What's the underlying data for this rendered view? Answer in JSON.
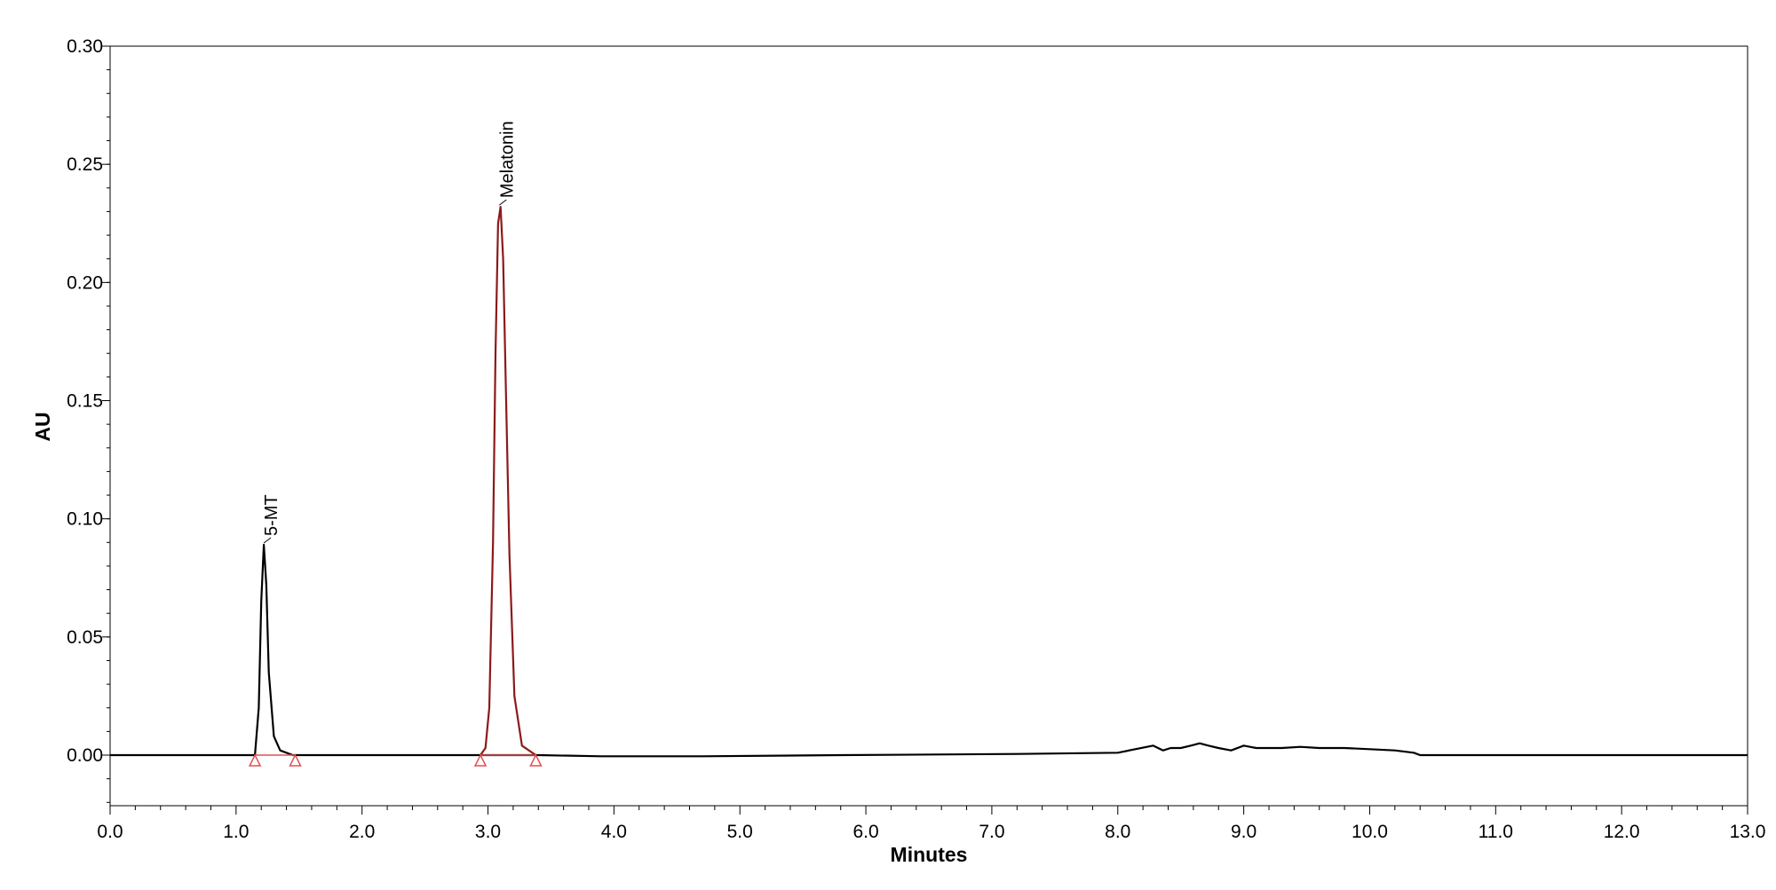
{
  "chart_data": {
    "type": "line",
    "title": "",
    "xlabel": "Minutes",
    "ylabel": "AU",
    "xlim": [
      0.0,
      13.0
    ],
    "ylim": [
      -0.022,
      0.3
    ],
    "grid": false,
    "x_ticks": [
      "0.0",
      "1.0",
      "2.0",
      "3.0",
      "4.0",
      "5.0",
      "6.0",
      "7.0",
      "8.0",
      "9.0",
      "10.0",
      "11.0",
      "12.0",
      "13.0"
    ],
    "x_tick_values": [
      0,
      1,
      2,
      3,
      4,
      5,
      6,
      7,
      8,
      9,
      10,
      11,
      12,
      13
    ],
    "y_ticks": [
      "0.00",
      "0.05",
      "0.10",
      "0.15",
      "0.20",
      "0.25",
      "0.30"
    ],
    "y_tick_values": [
      0.0,
      0.05,
      0.1,
      0.15,
      0.2,
      0.25,
      0.3
    ],
    "series": [
      {
        "color": "#000000",
        "x": [
          0.0,
          1.15,
          1.18,
          1.2,
          1.22,
          1.24,
          1.26,
          1.3,
          1.35,
          1.45,
          2.5,
          2.9,
          3.4,
          3.9,
          4.7,
          5.8,
          7.2,
          8.0,
          8.28,
          8.32,
          8.36,
          8.42,
          8.5,
          8.58,
          8.65,
          8.72,
          8.8,
          8.9,
          9.0,
          9.05,
          9.1,
          9.2,
          9.3,
          9.45,
          9.6,
          9.8,
          10.0,
          10.2,
          10.35,
          10.4,
          11.0,
          13.0
        ],
        "y": [
          0.0,
          0.0,
          0.02,
          0.065,
          0.089,
          0.072,
          0.035,
          0.008,
          0.002,
          0.0,
          0.0,
          0.0,
          0.0,
          -0.0005,
          -0.0005,
          0.0,
          0.0005,
          0.001,
          0.004,
          0.003,
          0.002,
          0.003,
          0.003,
          0.004,
          0.005,
          0.004,
          0.003,
          0.002,
          0.004,
          0.0035,
          0.003,
          0.003,
          0.003,
          0.0035,
          0.003,
          0.003,
          0.0025,
          0.002,
          0.001,
          0.0,
          0.0,
          0.0
        ]
      },
      {
        "color": "#8b1a1a",
        "x": [
          2.94,
          2.98,
          3.01,
          3.04,
          3.06,
          3.08,
          3.1,
          3.12,
          3.14,
          3.17,
          3.21,
          3.27,
          3.38
        ],
        "y": [
          0.0,
          0.003,
          0.02,
          0.09,
          0.17,
          0.225,
          0.232,
          0.21,
          0.16,
          0.085,
          0.025,
          0.004,
          0.0
        ]
      }
    ],
    "peaks": [
      {
        "name": "5-MT",
        "apex_x": 1.22,
        "apex_y": 0.089,
        "start_x": 1.15,
        "end_x": 1.47
      },
      {
        "name": "Melatonin",
        "apex_x": 3.09,
        "apex_y": 0.232,
        "start_x": 2.94,
        "end_x": 3.38
      }
    ],
    "colors": {
      "trace": "#000000",
      "integrated_peak": "#8b1a1a",
      "baseline_marker": "#e05050"
    }
  }
}
